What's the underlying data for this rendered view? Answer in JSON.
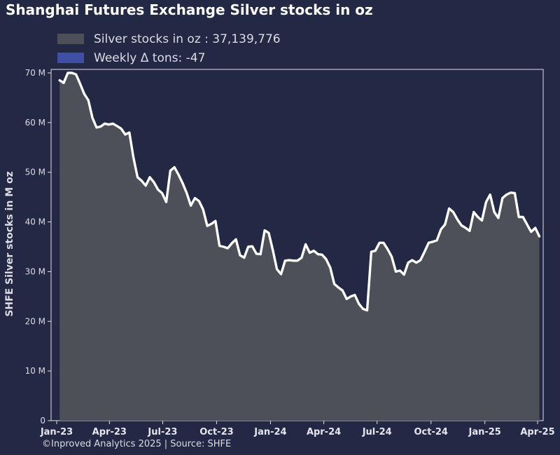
{
  "chart_data": {
    "type": "area",
    "title": "Shanghai Futures Exchange Silver stocks in oz",
    "ylabel": "SHFE Silver stocks in M oz",
    "xlabel": "",
    "ylim": [
      0,
      70
    ],
    "xlim": [
      "2023-01-01",
      "2025-04-01"
    ],
    "y_ticks": [
      "0",
      "10 M",
      "20 M",
      "30 M",
      "40 M",
      "50 M",
      "60 M",
      "70 M"
    ],
    "x_ticks": [
      {
        "label": "Jan-23",
        "date": "2023-01-01"
      },
      {
        "label": "Apr-23",
        "date": "2023-04-01"
      },
      {
        "label": "Jul-23",
        "date": "2023-07-01"
      },
      {
        "label": "Oct-23",
        "date": "2023-10-01"
      },
      {
        "label": "Jan-24",
        "date": "2024-01-01"
      },
      {
        "label": "Apr-24",
        "date": "2024-04-01"
      },
      {
        "label": "Jul-24",
        "date": "2024-07-01"
      },
      {
        "label": "Oct-24",
        "date": "2024-10-01"
      },
      {
        "label": "Jan-25",
        "date": "2025-01-01"
      },
      {
        "label": "Apr-25",
        "date": "2025-04-01"
      }
    ],
    "legend": [
      {
        "label": "Silver stocks in oz : 37,139,776",
        "color": "#4e5059"
      },
      {
        "label": "Weekly Δ tons: -47",
        "color": "#3e4fa5"
      }
    ],
    "legend_position": "top-left",
    "grid": false,
    "series": [
      {
        "name": "Silver stocks in oz",
        "fill_color": "#4e5059",
        "line_color": "#ffffff",
        "points": [
          {
            "x": "2023-01-06",
            "y": 68.5
          },
          {
            "x": "2023-01-13",
            "y": 68.0
          },
          {
            "x": "2023-01-20",
            "y": 70.0
          },
          {
            "x": "2023-01-27",
            "y": 70.0
          },
          {
            "x": "2023-02-03",
            "y": 69.7
          },
          {
            "x": "2023-02-10",
            "y": 67.8
          },
          {
            "x": "2023-02-17",
            "y": 65.8
          },
          {
            "x": "2023-02-24",
            "y": 64.5
          },
          {
            "x": "2023-03-03",
            "y": 61.0
          },
          {
            "x": "2023-03-10",
            "y": 59.0
          },
          {
            "x": "2023-03-17",
            "y": 59.2
          },
          {
            "x": "2023-03-24",
            "y": 59.8
          },
          {
            "x": "2023-03-31",
            "y": 59.6
          },
          {
            "x": "2023-04-07",
            "y": 59.8
          },
          {
            "x": "2023-04-14",
            "y": 59.3
          },
          {
            "x": "2023-04-21",
            "y": 58.8
          },
          {
            "x": "2023-04-28",
            "y": 57.6
          },
          {
            "x": "2023-05-05",
            "y": 58.0
          },
          {
            "x": "2023-05-12",
            "y": 53.0
          },
          {
            "x": "2023-05-19",
            "y": 49.0
          },
          {
            "x": "2023-05-26",
            "y": 48.3
          },
          {
            "x": "2023-06-02",
            "y": 47.3
          },
          {
            "x": "2023-06-09",
            "y": 49.0
          },
          {
            "x": "2023-06-16",
            "y": 48.0
          },
          {
            "x": "2023-06-23",
            "y": 46.5
          },
          {
            "x": "2023-06-30",
            "y": 45.8
          },
          {
            "x": "2023-07-07",
            "y": 44.0
          },
          {
            "x": "2023-07-14",
            "y": 50.3
          },
          {
            "x": "2023-07-21",
            "y": 51.0
          },
          {
            "x": "2023-07-28",
            "y": 49.5
          },
          {
            "x": "2023-08-04",
            "y": 47.8
          },
          {
            "x": "2023-08-11",
            "y": 45.8
          },
          {
            "x": "2023-08-18",
            "y": 43.3
          },
          {
            "x": "2023-08-25",
            "y": 44.8
          },
          {
            "x": "2023-09-01",
            "y": 44.2
          },
          {
            "x": "2023-09-08",
            "y": 42.5
          },
          {
            "x": "2023-09-15",
            "y": 39.2
          },
          {
            "x": "2023-09-22",
            "y": 39.6
          },
          {
            "x": "2023-09-29",
            "y": 40.2
          },
          {
            "x": "2023-10-06",
            "y": 35.2
          },
          {
            "x": "2023-10-13",
            "y": 35.0
          },
          {
            "x": "2023-10-20",
            "y": 34.7
          },
          {
            "x": "2023-10-27",
            "y": 35.7
          },
          {
            "x": "2023-11-03",
            "y": 36.5
          },
          {
            "x": "2023-11-10",
            "y": 33.3
          },
          {
            "x": "2023-11-17",
            "y": 32.8
          },
          {
            "x": "2023-11-24",
            "y": 35.0
          },
          {
            "x": "2023-12-01",
            "y": 35.1
          },
          {
            "x": "2023-12-08",
            "y": 33.6
          },
          {
            "x": "2023-12-15",
            "y": 33.5
          },
          {
            "x": "2023-12-22",
            "y": 38.3
          },
          {
            "x": "2023-12-29",
            "y": 37.8
          },
          {
            "x": "2024-01-05",
            "y": 34.3
          },
          {
            "x": "2024-01-12",
            "y": 30.5
          },
          {
            "x": "2024-01-19",
            "y": 29.5
          },
          {
            "x": "2024-01-26",
            "y": 32.2
          },
          {
            "x": "2024-02-02",
            "y": 32.3
          },
          {
            "x": "2024-02-09",
            "y": 32.2
          },
          {
            "x": "2024-02-16",
            "y": 32.2
          },
          {
            "x": "2024-02-23",
            "y": 32.8
          },
          {
            "x": "2024-03-01",
            "y": 35.5
          },
          {
            "x": "2024-03-08",
            "y": 33.8
          },
          {
            "x": "2024-03-15",
            "y": 34.2
          },
          {
            "x": "2024-03-22",
            "y": 33.5
          },
          {
            "x": "2024-03-29",
            "y": 33.4
          },
          {
            "x": "2024-04-05",
            "y": 32.5
          },
          {
            "x": "2024-04-12",
            "y": 30.8
          },
          {
            "x": "2024-04-19",
            "y": 27.5
          },
          {
            "x": "2024-04-26",
            "y": 26.8
          },
          {
            "x": "2024-05-03",
            "y": 26.2
          },
          {
            "x": "2024-05-10",
            "y": 24.5
          },
          {
            "x": "2024-05-17",
            "y": 25.0
          },
          {
            "x": "2024-05-24",
            "y": 25.3
          },
          {
            "x": "2024-05-31",
            "y": 23.5
          },
          {
            "x": "2024-06-07",
            "y": 22.5
          },
          {
            "x": "2024-06-14",
            "y": 22.2
          },
          {
            "x": "2024-06-21",
            "y": 34.0
          },
          {
            "x": "2024-06-28",
            "y": 34.2
          },
          {
            "x": "2024-07-05",
            "y": 35.8
          },
          {
            "x": "2024-07-12",
            "y": 35.8
          },
          {
            "x": "2024-07-19",
            "y": 34.5
          },
          {
            "x": "2024-07-26",
            "y": 33.0
          },
          {
            "x": "2024-08-02",
            "y": 30.0
          },
          {
            "x": "2024-08-09",
            "y": 30.2
          },
          {
            "x": "2024-08-16",
            "y": 29.4
          },
          {
            "x": "2024-08-23",
            "y": 31.8
          },
          {
            "x": "2024-08-30",
            "y": 32.3
          },
          {
            "x": "2024-09-06",
            "y": 31.8
          },
          {
            "x": "2024-09-13",
            "y": 32.3
          },
          {
            "x": "2024-09-20",
            "y": 34.0
          },
          {
            "x": "2024-09-27",
            "y": 35.8
          },
          {
            "x": "2024-10-04",
            "y": 36.0
          },
          {
            "x": "2024-10-11",
            "y": 36.3
          },
          {
            "x": "2024-10-18",
            "y": 38.5
          },
          {
            "x": "2024-10-25",
            "y": 39.5
          },
          {
            "x": "2024-11-01",
            "y": 42.7
          },
          {
            "x": "2024-11-08",
            "y": 42.0
          },
          {
            "x": "2024-11-15",
            "y": 40.5
          },
          {
            "x": "2024-11-22",
            "y": 39.3
          },
          {
            "x": "2024-11-29",
            "y": 38.8
          },
          {
            "x": "2024-12-06",
            "y": 38.2
          },
          {
            "x": "2024-12-13",
            "y": 42.0
          },
          {
            "x": "2024-12-20",
            "y": 41.0
          },
          {
            "x": "2024-12-27",
            "y": 40.3
          },
          {
            "x": "2025-01-03",
            "y": 44.0
          },
          {
            "x": "2025-01-10",
            "y": 45.5
          },
          {
            "x": "2025-01-17",
            "y": 42.0
          },
          {
            "x": "2025-01-24",
            "y": 40.8
          },
          {
            "x": "2025-01-31",
            "y": 44.8
          },
          {
            "x": "2025-02-07",
            "y": 45.5
          },
          {
            "x": "2025-02-14",
            "y": 45.9
          },
          {
            "x": "2025-02-21",
            "y": 45.8
          },
          {
            "x": "2025-02-28",
            "y": 41.0
          },
          {
            "x": "2025-03-07",
            "y": 41.0
          },
          {
            "x": "2025-03-14",
            "y": 39.5
          },
          {
            "x": "2025-03-21",
            "y": 38.0
          },
          {
            "x": "2025-03-28",
            "y": 38.8
          },
          {
            "x": "2025-04-04",
            "y": 37.1
          }
        ]
      }
    ],
    "footer": "©Inproved Analytics 2025 | Source: SHFE"
  }
}
